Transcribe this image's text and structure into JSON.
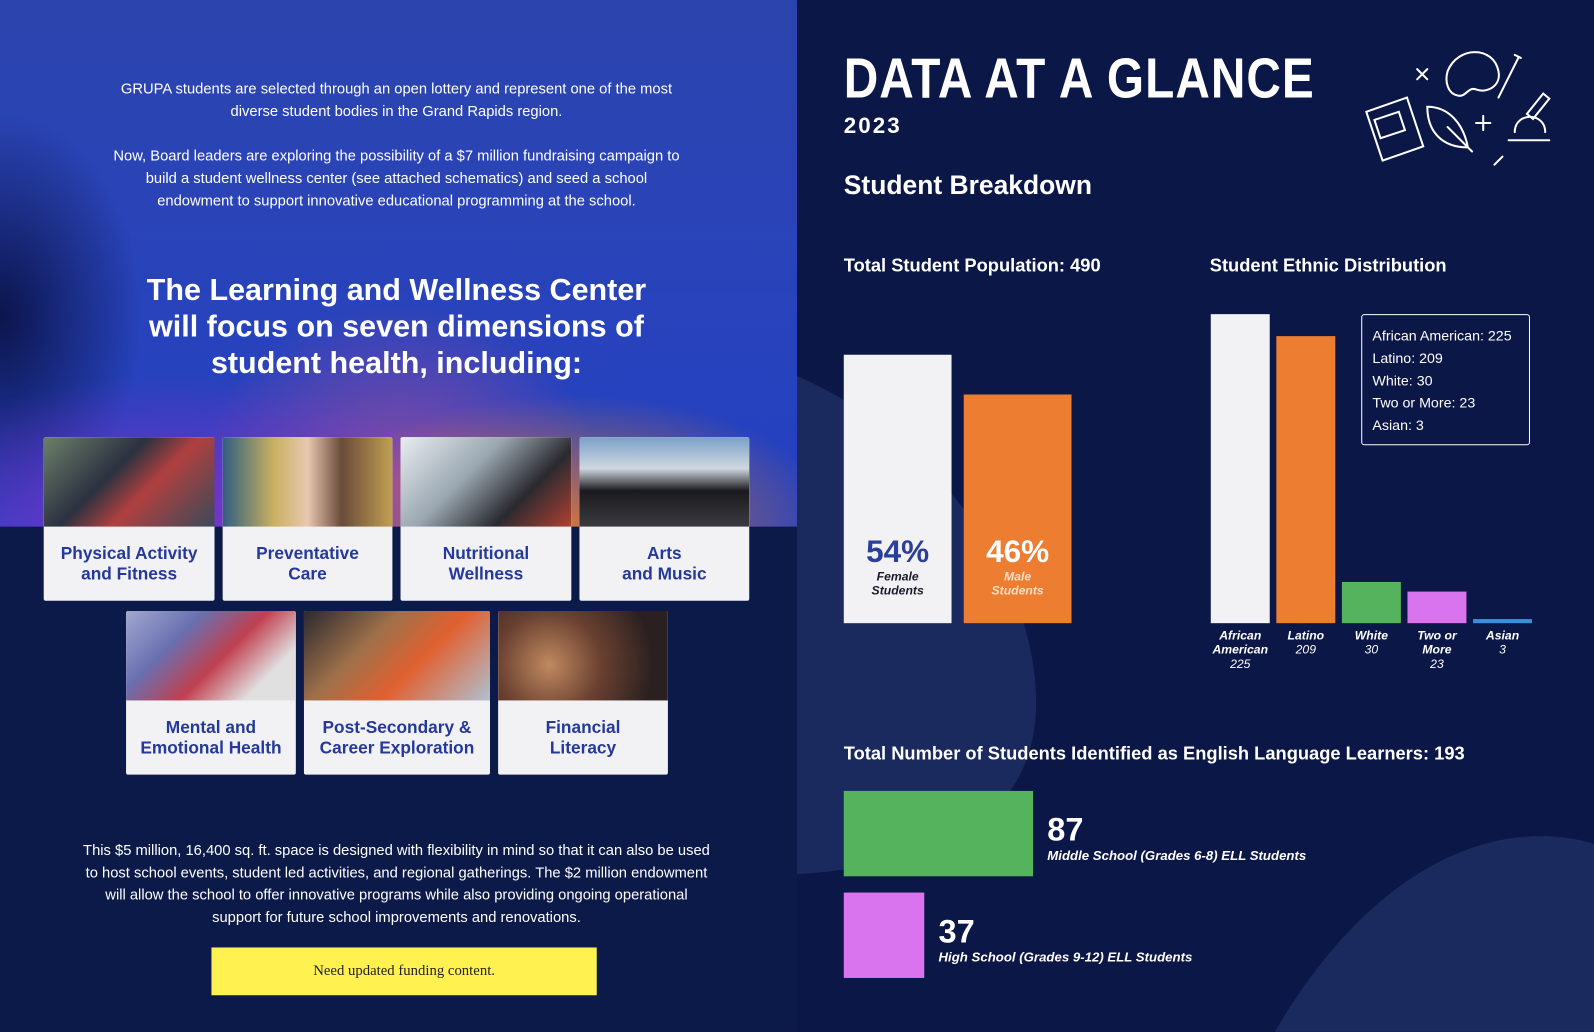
{
  "left": {
    "intro": [
      "GRUPA students are selected through an open lottery and represent one of the most diverse student bodies in the Grand Rapids region.",
      "Now, Board leaders are exploring the possibility of a $7 million fundraising campaign to build a student wellness center (see attached schematics) and seed a school endowment to support innovative educational programming at the school."
    ],
    "heading": "The Learning and Wellness Center will focus on seven dimensions of student health, including:",
    "dimensions": [
      "Physical Activity\nand Fitness",
      "Preventative\nCare",
      "Nutritional\nWellness",
      "Arts\nand Music",
      "Mental and\nEmotional Health",
      "Post-Secondary &\nCareer Exploration",
      "Financial\nLiteracy"
    ],
    "body": "This $5 million, 16,400 sq. ft. space is designed with flexibility in mind so that it can also be used to host school events, student led activities, and regional gatherings.  The $2 million endowment will allow the school to offer innovative programs while also providing ongoing operational support for future school improvements and renovations.",
    "note": "Need updated funding content."
  },
  "right": {
    "title": "DATA AT A GLANCE",
    "year": "2023",
    "section": "Student Breakdown",
    "population": {
      "type": "bar",
      "title": "Total Student Population: 490",
      "categories": [
        "Female\nStudents",
        "Male\nStudents"
      ],
      "values": [
        54,
        46
      ],
      "value_labels": [
        "54%",
        "46%"
      ],
      "colors": [
        "#f2f2f4",
        "#ed7d31"
      ]
    },
    "ethnicity": {
      "type": "bar",
      "title": "Student Ethnic Distribution",
      "categories": [
        "African American",
        "Latino",
        "White",
        "Two or More",
        "Asian"
      ],
      "values": [
        225,
        209,
        30,
        23,
        3
      ],
      "colors": [
        "#f2f2f4",
        "#ed7d31",
        "#55b35e",
        "#d973ee",
        "#3a8fd6"
      ],
      "legend": [
        "African American: 225",
        "Latino: 209",
        "White: 30",
        "Two or More: 23",
        "Asian: 3"
      ]
    },
    "ell": {
      "type": "hbar",
      "title": "Total Number of Students Identified as English Language Learners: 193",
      "categories": [
        "Middle School (Grades 6-8) ELL Students",
        "High School (Grades 9-12) ELL Students"
      ],
      "values": [
        87,
        37
      ],
      "colors": [
        "#55b35e",
        "#d973ee"
      ]
    }
  }
}
